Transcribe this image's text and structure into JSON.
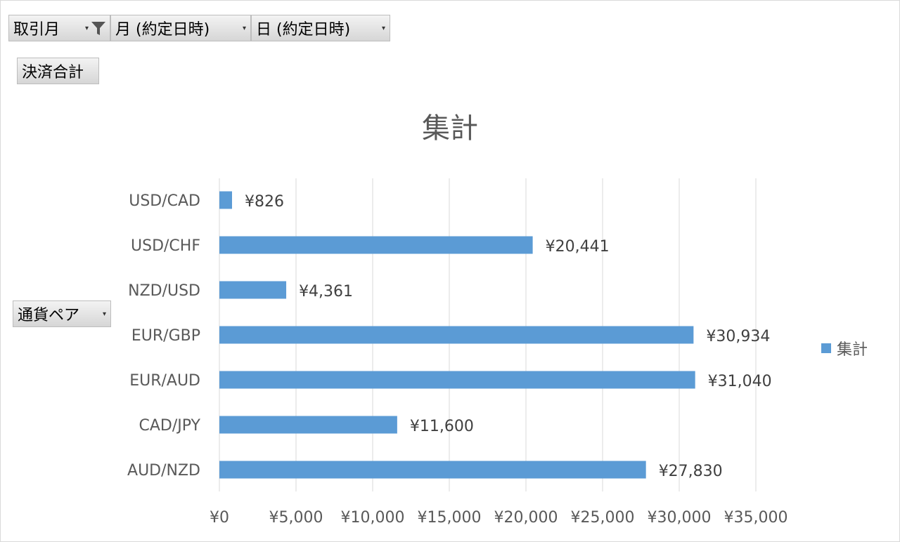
{
  "filters": {
    "month": "取引月",
    "month_contract": "月 (約定日時)",
    "day_contract": "日 (約定日時)"
  },
  "values_button": "決済合計",
  "row_button": "通貨ペア",
  "colors": {
    "bar": "#5b9bd5",
    "grid": "#d9d9d9"
  },
  "chart_data": {
    "type": "bar",
    "orientation": "horizontal",
    "title": "集計",
    "categories": [
      "USD/CAD",
      "USD/CHF",
      "NZD/USD",
      "EUR/GBP",
      "EUR/AUD",
      "CAD/JPY",
      "AUD/NZD"
    ],
    "series": [
      {
        "name": "集計",
        "values": [
          826,
          20441,
          4361,
          30934,
          31040,
          11600,
          27830
        ]
      }
    ],
    "data_labels": [
      "¥826",
      "¥20,441",
      "¥4,361",
      "¥30,934",
      "¥31,040",
      "¥11,600",
      "¥27,830"
    ],
    "xlim": [
      0,
      35000
    ],
    "xticks": [
      "¥0",
      "¥5,000",
      "¥10,000",
      "¥15,000",
      "¥20,000",
      "¥25,000",
      "¥30,000",
      "¥35,000"
    ],
    "grid": true,
    "legend": "right"
  }
}
